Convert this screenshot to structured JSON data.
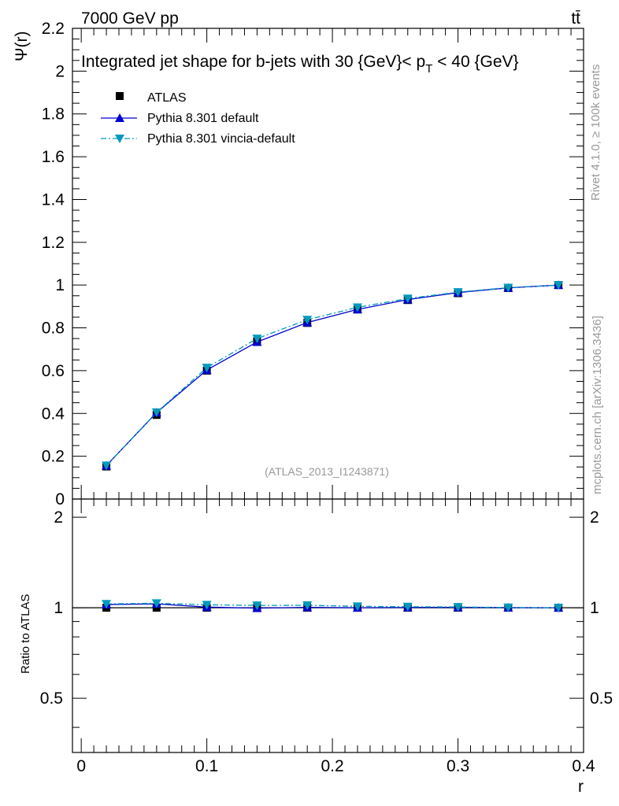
{
  "header": {
    "left": "7000 GeV pp",
    "right": "tt̄"
  },
  "side_labels": {
    "rivet": "Rivet 4.1.0, ≥ 100k events",
    "mcplots": "mcplots.cern.ch [arXiv:1306.3436]"
  },
  "colors": {
    "atlas": "#000000",
    "pythia_default": "#0000cc",
    "pythia_vincia": "#0099bb",
    "watermark": "#999999"
  },
  "chart_data": [
    {
      "type": "line",
      "panel": "main",
      "title": "Integrated jet shape for b-jets with 30 {GeV}< p_T < 40 {GeV}",
      "title_parts": {
        "prefix": "Integrated jet shape for b-jets with 30 {GeV}< p",
        "subscript": "T",
        "suffix": " < 40 {GeV}"
      },
      "watermark": "(ATLAS_2013_I1243871)",
      "xlabel": "",
      "ylabel": "Ψ(r)",
      "xlim": [
        -0.007,
        0.4
      ],
      "ylim": [
        0,
        2.2
      ],
      "x_ticks": [
        0,
        0.1,
        0.2,
        0.3,
        0.4
      ],
      "y_ticks": [
        0,
        0.2,
        0.4,
        0.6,
        0.8,
        1,
        1.2,
        1.4,
        1.6,
        1.8,
        2,
        2.2
      ],
      "y_tick_labels": [
        "0",
        "0.2",
        "0.4",
        "0.6",
        "0.8",
        "1",
        "1.2",
        "1.4",
        "1.6",
        "1.8",
        "2",
        "2.2"
      ],
      "x": [
        0.02,
        0.06,
        0.1,
        0.14,
        0.18,
        0.22,
        0.26,
        0.3,
        0.34,
        0.38
      ],
      "legend_position": "top-left",
      "series": [
        {
          "name": "ATLAS",
          "marker": "square",
          "line": "none",
          "values": [
            0.152,
            0.393,
            0.6,
            0.737,
            0.823,
            0.886,
            0.93,
            0.962,
            0.986,
            1.0
          ]
        },
        {
          "name": "Pythia 8.301 default",
          "marker": "triangle-up",
          "line": "solid",
          "values": [
            0.156,
            0.404,
            0.603,
            0.734,
            0.825,
            0.886,
            0.932,
            0.965,
            0.987,
            1.0
          ]
        },
        {
          "name": "Pythia 8.301 vincia-default",
          "marker": "triangle-down",
          "line": "dashdot",
          "values": [
            0.157,
            0.405,
            0.614,
            0.75,
            0.838,
            0.896,
            0.937,
            0.967,
            0.988,
            1.0
          ]
        }
      ]
    },
    {
      "type": "line",
      "panel": "ratio",
      "title": "",
      "xlabel": "r",
      "ylabel": "Ratio to ATLAS",
      "xlim": [
        -0.007,
        0.4
      ],
      "ylim": [
        0.33,
        2.3
      ],
      "y_scale": "log",
      "x_ticks": [
        0,
        0.1,
        0.2,
        0.3,
        0.4
      ],
      "x_tick_labels": [
        "0",
        "0.1",
        "0.2",
        "0.3",
        "0.4"
      ],
      "y_ticks": [
        0.5,
        1,
        2
      ],
      "y_tick_labels": [
        "0.5",
        "1",
        "2"
      ],
      "x": [
        0.02,
        0.06,
        0.1,
        0.14,
        0.18,
        0.22,
        0.26,
        0.3,
        0.34,
        0.38
      ],
      "series": [
        {
          "name": "ATLAS",
          "values": [
            1,
            1,
            1,
            1,
            1,
            1,
            1,
            1,
            1,
            1
          ]
        },
        {
          "name": "Pythia 8.301 default",
          "values": [
            1.025,
            1.03,
            1.005,
            0.997,
            1.003,
            1.0,
            1.002,
            1.003,
            1.001,
            1.0
          ]
        },
        {
          "name": "Pythia 8.301 vincia-default",
          "values": [
            1.03,
            1.035,
            1.023,
            1.018,
            1.019,
            1.011,
            1.008,
            1.006,
            1.002,
            1.0
          ]
        }
      ]
    }
  ]
}
